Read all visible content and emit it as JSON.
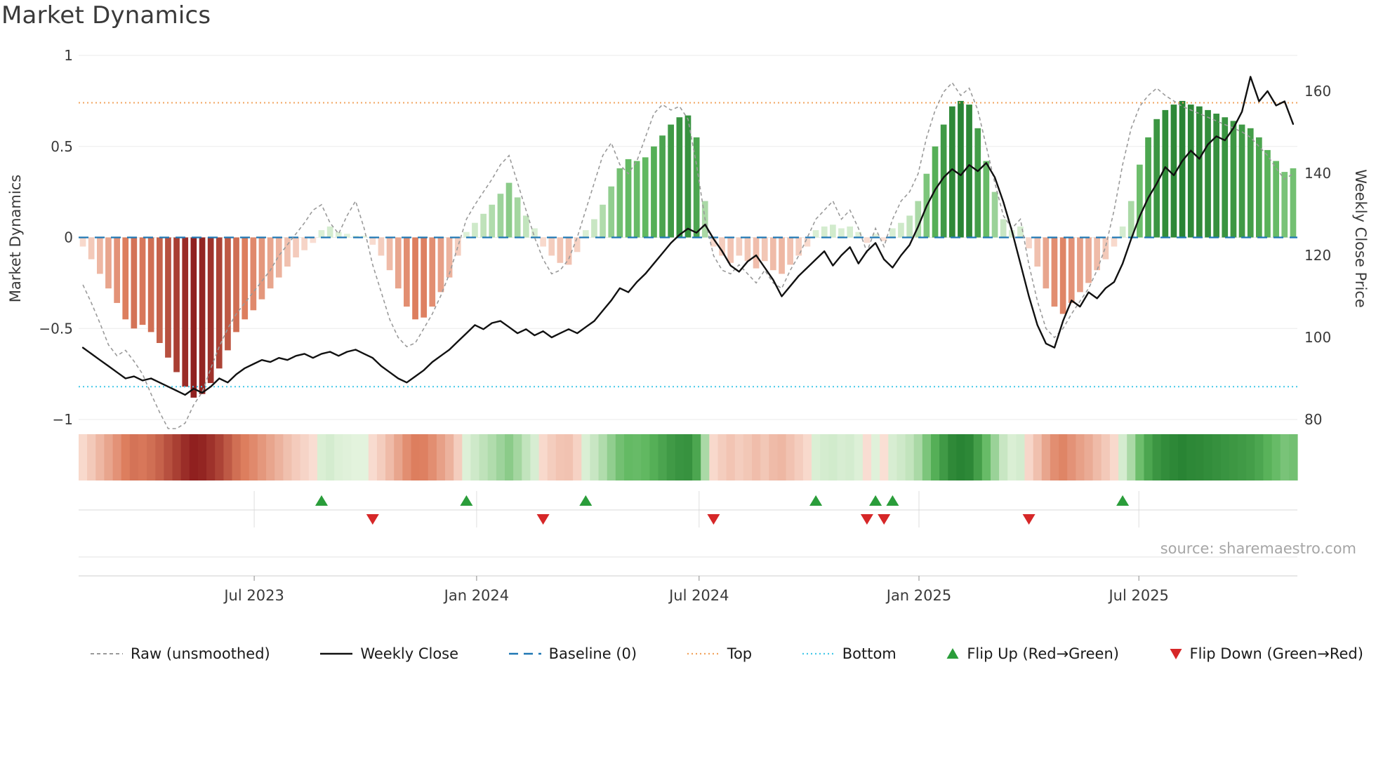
{
  "source": "source: sharemaestro.com",
  "axes": {
    "left_label": "Market Dynamics",
    "right_label": "Weekly Close Price",
    "left_ticks": [
      1,
      0.5,
      0,
      -0.5,
      -1
    ],
    "right_ticks": [
      160,
      140,
      120,
      100,
      80
    ]
  },
  "legend": {
    "items": [
      {
        "label": "Raw (unsmoothed)"
      },
      {
        "label": "Weekly Close"
      },
      {
        "label": "Baseline (0)"
      },
      {
        "label": "Top"
      },
      {
        "label": "Bottom"
      },
      {
        "label": "Flip Up (Red→Green)"
      },
      {
        "label": "Flip Down (Green→Red)"
      }
    ]
  },
  "colors": {
    "raw": "#9a9a9a",
    "close": "#111111",
    "baseline": "#1f77b4",
    "top": "#f2a45f",
    "bottom": "#45c8e8",
    "flip_up": "#2a9d3a",
    "flip_down": "#d62728",
    "red_dark": "#8c1c1c",
    "red_mid": "#dd7e5e",
    "red_light": "#fbe4da",
    "green_dark": "#0f6b1f",
    "green_mid": "#5eb75e",
    "green_light": "#e6f4e0",
    "grid": "#ebebeb"
  },
  "chart_data": {
    "type": "bar+line",
    "title": "Market Dynamics",
    "x_unit": "weekly, Feb 2023 - Nov 2025",
    "x_tick_labels": [
      "Jul 2023",
      "Jan 2024",
      "Jul 2024",
      "Jan 2025",
      "Jul 2025"
    ],
    "x_tick_weeks": [
      20.1,
      46.2,
      72.3,
      98.1,
      123.9
    ],
    "osc_ylim": [
      -1,
      1
    ],
    "price_ylim": [
      80,
      168.7
    ],
    "baseline": 0,
    "top_level": 0.74,
    "bottom_level": -0.82,
    "flip_up_weeks": [
      28,
      45,
      59,
      86,
      93,
      95,
      122
    ],
    "flip_down_weeks": [
      34,
      54,
      74,
      92,
      94,
      111
    ],
    "oscillator": [
      -0.05,
      -0.12,
      -0.2,
      -0.28,
      -0.36,
      -0.45,
      -0.5,
      -0.48,
      -0.52,
      -0.58,
      -0.66,
      -0.74,
      -0.82,
      -0.88,
      -0.86,
      -0.8,
      -0.72,
      -0.62,
      -0.52,
      -0.45,
      -0.4,
      -0.34,
      -0.28,
      -0.22,
      -0.16,
      -0.11,
      -0.07,
      -0.03,
      0.04,
      0.06,
      0.03,
      0.02,
      0.01,
      0.01,
      -0.04,
      -0.1,
      -0.18,
      -0.28,
      -0.38,
      -0.45,
      -0.44,
      -0.38,
      -0.3,
      -0.22,
      -0.1,
      0.03,
      0.08,
      0.13,
      0.18,
      0.24,
      0.3,
      0.22,
      0.12,
      0.05,
      -0.05,
      -0.1,
      -0.14,
      -0.15,
      -0.08,
      0.04,
      0.1,
      0.18,
      0.28,
      0.38,
      0.43,
      0.42,
      0.44,
      0.5,
      0.56,
      0.62,
      0.66,
      0.67,
      0.55,
      0.2,
      -0.05,
      -0.1,
      -0.14,
      -0.1,
      -0.13,
      -0.17,
      -0.13,
      -0.18,
      -0.2,
      -0.15,
      -0.1,
      -0.05,
      0.04,
      0.06,
      0.07,
      0.05,
      0.06,
      0.03,
      -0.03,
      0.02,
      -0.02,
      0.05,
      0.08,
      0.12,
      0.2,
      0.35,
      0.5,
      0.62,
      0.72,
      0.75,
      0.73,
      0.6,
      0.42,
      0.25,
      0.1,
      0.04,
      0.06,
      -0.06,
      -0.16,
      -0.28,
      -0.38,
      -0.42,
      -0.36,
      -0.3,
      -0.25,
      -0.18,
      -0.12,
      -0.05,
      0.06,
      0.2,
      0.4,
      0.55,
      0.65,
      0.7,
      0.73,
      0.75,
      0.73,
      0.72,
      0.7,
      0.68,
      0.66,
      0.64,
      0.62,
      0.6,
      0.55,
      0.48,
      0.42,
      0.36,
      0.38
    ],
    "raw": [
      -0.26,
      -0.36,
      -0.47,
      -0.59,
      -0.65,
      -0.62,
      -0.68,
      -0.75,
      -0.86,
      -0.96,
      -1.05,
      -1.05,
      -1.02,
      -0.92,
      -0.85,
      -0.72,
      -0.6,
      -0.5,
      -0.42,
      -0.36,
      -0.3,
      -0.24,
      -0.18,
      -0.1,
      -0.04,
      0.02,
      0.08,
      0.15,
      0.18,
      0.08,
      0.02,
      0.12,
      0.2,
      0.05,
      -0.15,
      -0.3,
      -0.45,
      -0.55,
      -0.6,
      -0.58,
      -0.5,
      -0.42,
      -0.32,
      -0.2,
      -0.05,
      0.1,
      0.18,
      0.25,
      0.32,
      0.4,
      0.45,
      0.3,
      0.15,
      0.0,
      -0.12,
      -0.2,
      -0.18,
      -0.12,
      0.0,
      0.15,
      0.3,
      0.45,
      0.52,
      0.4,
      0.35,
      0.42,
      0.55,
      0.68,
      0.73,
      0.7,
      0.72,
      0.65,
      0.4,
      0.1,
      -0.1,
      -0.18,
      -0.2,
      -0.15,
      -0.2,
      -0.25,
      -0.18,
      -0.25,
      -0.28,
      -0.18,
      -0.1,
      0.0,
      0.1,
      0.15,
      0.2,
      0.1,
      0.15,
      0.05,
      -0.08,
      0.05,
      -0.05,
      0.1,
      0.2,
      0.25,
      0.35,
      0.55,
      0.7,
      0.8,
      0.85,
      0.78,
      0.82,
      0.7,
      0.5,
      0.3,
      0.12,
      0.05,
      0.1,
      -0.15,
      -0.35,
      -0.5,
      -0.55,
      -0.5,
      -0.42,
      -0.35,
      -0.28,
      -0.18,
      -0.05,
      0.15,
      0.4,
      0.6,
      0.72,
      0.78,
      0.82,
      0.78,
      0.75,
      0.72,
      0.7,
      0.68,
      0.66,
      0.64,
      0.62,
      0.6,
      0.58,
      0.55,
      0.5,
      0.45,
      0.38,
      0.32,
      0.35
    ],
    "close": [
      97.5,
      96.0,
      94.5,
      93.0,
      91.5,
      90.0,
      90.5,
      89.5,
      90.0,
      89.0,
      88.0,
      87.0,
      86.0,
      87.5,
      86.5,
      88.0,
      90.0,
      89.0,
      91.0,
      92.5,
      93.5,
      94.5,
      94.0,
      95.0,
      94.5,
      95.5,
      96.0,
      95.0,
      96.0,
      96.5,
      95.5,
      96.5,
      97.0,
      96.0,
      95.0,
      93.0,
      91.5,
      90.0,
      89.0,
      90.5,
      92.0,
      94.0,
      95.5,
      97.0,
      99.0,
      101.0,
      103.0,
      102.0,
      103.5,
      104.0,
      102.5,
      101.0,
      102.0,
      100.5,
      101.5,
      100.0,
      101.0,
      102.0,
      101.0,
      102.5,
      104.0,
      106.5,
      109.0,
      112.0,
      111.0,
      113.5,
      115.5,
      118.0,
      120.5,
      123.0,
      125.0,
      126.5,
      125.5,
      127.5,
      124.0,
      121.0,
      117.5,
      116.0,
      118.5,
      120.0,
      117.0,
      114.0,
      110.0,
      112.5,
      115.0,
      117.0,
      119.0,
      121.0,
      117.5,
      120.0,
      122.0,
      118.0,
      121.0,
      123.0,
      119.0,
      117.0,
      120.0,
      122.5,
      127.0,
      132.0,
      136.0,
      139.0,
      141.0,
      139.5,
      142.0,
      140.5,
      142.5,
      139.0,
      133.0,
      126.0,
      118.0,
      110.0,
      103.0,
      98.5,
      97.5,
      104.0,
      109.0,
      107.5,
      111.0,
      109.5,
      112.0,
      113.5,
      118.0,
      124.0,
      129.5,
      134.0,
      137.5,
      141.5,
      139.5,
      143.0,
      145.5,
      143.5,
      147.0,
      149.0,
      148.0,
      151.0,
      155.0,
      163.5,
      157.5,
      160.0,
      156.5,
      157.5,
      152.0
    ]
  }
}
